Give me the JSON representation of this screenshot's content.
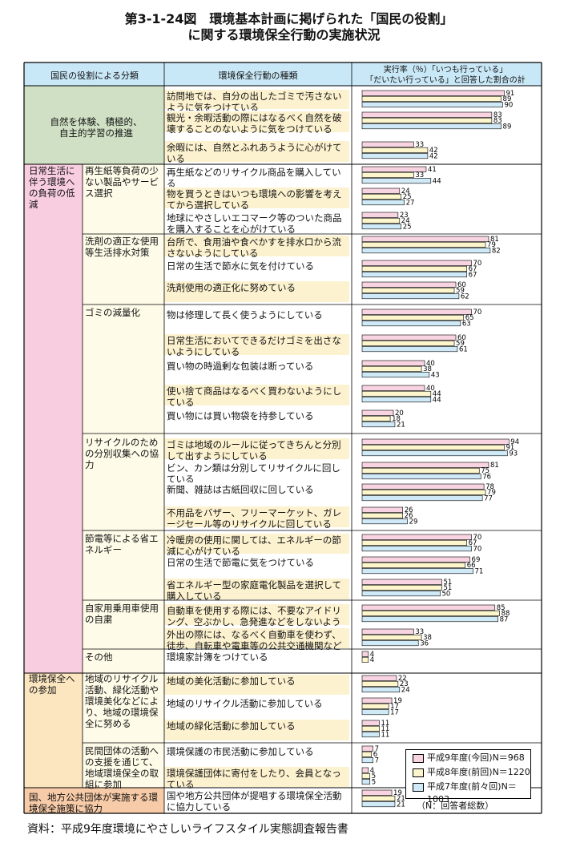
{
  "title": {
    "line1": "第3-1-24図　環境基本計画に掲げられた「国民の役割」",
    "line2": "に関する環境保全行動の実施状況"
  },
  "headers": {
    "col1": "国民の役割による分類",
    "col2": "環境保全行動の種類",
    "col3_line1": "実行率（％）「いつも行っている」",
    "col3_line2": "「だいたい行っている」と回答した割合の計"
  },
  "categories": [
    {
      "label": "自然を体験、積極的、自主的学習の推進"
    },
    {
      "label": "日常生活に伴う環境への負荷の低減"
    },
    {
      "label": "環境保全への参加"
    },
    {
      "label": "国、地方公共団体が実施する環境保全施策に協力"
    }
  ],
  "subcategories": [
    {
      "label": "再生紙等負荷の少ない製品やサービス選択"
    },
    {
      "label": "洗剤の適正な使用等生活排水対策"
    },
    {
      "label": "ゴミの減量化"
    },
    {
      "label": "リサイクルのための分別収集への協力"
    },
    {
      "label": "節電等による省エネルギー"
    },
    {
      "label": "自家用乗用車使用の自粛"
    },
    {
      "label": "その他"
    },
    {
      "label": "地域のリサイクル活動、緑化活動や環境美化などにより、地域の環境保全に努める"
    },
    {
      "label": "民間団体の活動への支援を通じて、地域環境保全の取組に参加"
    }
  ],
  "legend": {
    "s1": "平成9年度(今回)N＝968",
    "s2": "平成8年度(前回)N＝1220",
    "s3": "平成7年度(前々回)N＝1003",
    "note": "（N：回答者総数）"
  },
  "source": "資料：平成9年度環境にやさしいライフスタイル実態調査報告書",
  "colors": {
    "s1": "#f8d4e2",
    "s2": "#fdf5cc",
    "s3": "#cfe9f6",
    "header": "#c9e8f7",
    "cat1": "#cfe0c4",
    "cat2": "#f9cde0",
    "cat3": "#fbe6c0",
    "cat4": "#f7cba8",
    "rowband": "#fdf2cf"
  },
  "chart_data": {
    "type": "bar",
    "orientation": "horizontal",
    "title": "環境基本計画に掲げられた「国民の役割」に関する環境保全行動の実施状況",
    "xlabel": "実行率（％）",
    "xlim": [
      0,
      100
    ],
    "series": [
      {
        "name": "平成9年度(今回)N＝968",
        "color": "#f8d4e2"
      },
      {
        "name": "平成8年度(前回)N＝1220",
        "color": "#fdf5cc"
      },
      {
        "name": "平成7年度(前々回)N＝1003",
        "color": "#cfe9f6"
      }
    ],
    "items": [
      {
        "label": "訪問地では、自分の出したゴミで汚さないように気をつけている",
        "values": [
          91,
          89,
          90
        ]
      },
      {
        "label": "観光・余暇活動の際にはなるべく自然を破壊することのないように気をつけている",
        "values": [
          83,
          83,
          89
        ]
      },
      {
        "label": "余暇には、自然とふれあうように心がけている",
        "values": [
          33,
          42,
          42
        ]
      },
      {
        "label": "再生紙などのリサイクル商品を購入している",
        "values": [
          41,
          33,
          44
        ]
      },
      {
        "label": "物を買うときはいつも環境への影響を考えてから選択している",
        "values": [
          24,
          25,
          27
        ]
      },
      {
        "label": "地球にやさしいエコマーク等のついた商品を購入することを心がけている",
        "values": [
          23,
          24,
          25
        ]
      },
      {
        "label": "台所で、食用油や食べかすを排水口から流さないようにしている",
        "values": [
          81,
          79,
          82
        ]
      },
      {
        "label": "日常の生活で節水に気を付けている",
        "values": [
          70,
          67,
          67
        ]
      },
      {
        "label": "洗剤使用の適正化に努めている",
        "values": [
          60,
          59,
          62
        ]
      },
      {
        "label": "物は修理して長く使うようにしている",
        "values": [
          70,
          65,
          63
        ]
      },
      {
        "label": "日常生活においてできるだけゴミを出さないようにしている",
        "values": [
          60,
          59,
          61
        ]
      },
      {
        "label": "買い物の時過剰な包装は断っている",
        "values": [
          40,
          38,
          43
        ]
      },
      {
        "label": "使い捨て商品はなるべく買わないようにしている",
        "values": [
          40,
          44,
          44
        ]
      },
      {
        "label": "買い物には買い物袋を持参している",
        "values": [
          20,
          18,
          21
        ]
      },
      {
        "label": "ゴミは地域のルールに従ってきちんと分別して出すようにしている",
        "values": [
          94,
          91,
          93
        ]
      },
      {
        "label": "ビン、カン類は分別してリサイクルに回している",
        "values": [
          81,
          75,
          76
        ]
      },
      {
        "label": "新聞、雑誌は古紙回収に回している",
        "values": [
          78,
          79,
          77
        ]
      },
      {
        "label": "不用品をバザー、フリーマーケット、ガレージセール等のリサイクルに回している",
        "values": [
          26,
          26,
          29
        ]
      },
      {
        "label": "冷暖房の使用に関しては、エネルギーの節減に心がけている",
        "values": [
          70,
          67,
          70
        ]
      },
      {
        "label": "日常の生活で節電に気をつけている",
        "values": [
          69,
          66,
          71
        ]
      },
      {
        "label": "省エネルギー型の家庭電化製品を選択して購入している",
        "values": [
          51,
          51,
          50
        ]
      },
      {
        "label": "自動車を使用する際には、不要なアイドリング、空ぶかし、急発進などをしないようにしている",
        "values": [
          85,
          88,
          87
        ]
      },
      {
        "label": "外出の際には、なるべく自動車を使わず、徒歩、自転車や電車等の公共交通機関などを利用している",
        "values": [
          33,
          38,
          36
        ]
      },
      {
        "label": "環境家計簿をつけている",
        "values": [
          4,
          4,
          null
        ]
      },
      {
        "label": "地域の美化活動に参加している",
        "values": [
          22,
          23,
          24
        ]
      },
      {
        "label": "地域のリサイクル活動に参加している",
        "values": [
          19,
          17,
          17
        ]
      },
      {
        "label": "地域の緑化活動に参加している",
        "values": [
          11,
          11,
          11
        ]
      },
      {
        "label": "環境保護の市民活動に参加している",
        "values": [
          7,
          6,
          7
        ]
      },
      {
        "label": "環境保護団体に寄付をしたり、会員となっている",
        "values": [
          4,
          5,
          5
        ]
      },
      {
        "label": "国や地方公共団体が提唱する環境保全活動に協力している",
        "values": [
          19,
          21,
          21
        ]
      }
    ]
  }
}
